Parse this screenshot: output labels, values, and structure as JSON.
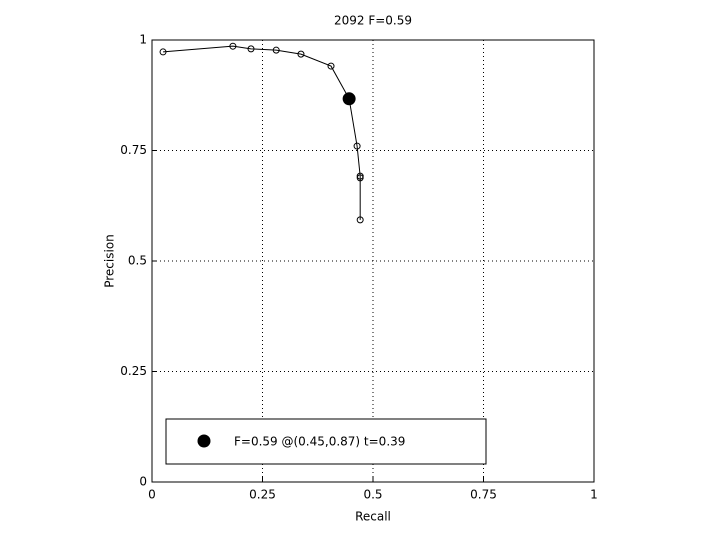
{
  "chart_data": {
    "type": "line",
    "title": "2092 F=0.59",
    "xlabel": "Recall",
    "ylabel": "Precision",
    "series": [
      {
        "color": "#000000",
        "marker": "open-circle",
        "x": [
          0.025,
          0.183,
          0.224,
          0.281,
          0.337,
          0.405,
          0.446,
          0.464,
          0.471,
          0.471,
          0.471
        ],
        "values": [
          0.973,
          0.986,
          0.98,
          0.977,
          0.968,
          0.941,
          0.867,
          0.76,
          0.692,
          0.688,
          0.593
        ]
      },
      {
        "name": "F=0.59 @(0.45,0.87) t=0.39",
        "color": "#000000",
        "marker": "filled-circle",
        "x": [
          0.446
        ],
        "values": [
          0.867
        ]
      }
    ],
    "xlim": [
      0,
      1
    ],
    "ylim": [
      0,
      1
    ],
    "xticks": [
      0,
      0.25,
      0.5,
      0.75,
      1
    ],
    "yticks": [
      0,
      0.25,
      0.5,
      0.75,
      1
    ],
    "grid": true,
    "legend": "lower left"
  }
}
